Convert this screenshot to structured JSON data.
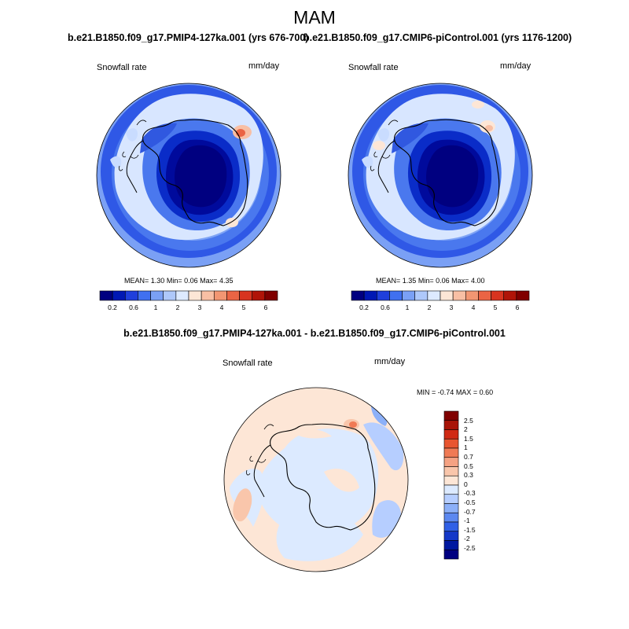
{
  "figure": {
    "title": "MAM",
    "colors": {
      "deep_blue": "#000080",
      "light_blue": "#d6e6ff",
      "light_salmon": "#fde0cc",
      "dark_red": "#800000"
    }
  },
  "panels": [
    {
      "case_title": "b.e21.B1850.f09_g17.PMIP4-127ka.001 (yrs 676-700)",
      "variable": "Snowfall rate",
      "units": "mm/day",
      "stats": {
        "mean_label": "MEAN=",
        "mean": "1.30",
        "min_label": "Min=",
        "min": "0.06",
        "max_label": "Max=",
        "max": "4.35"
      }
    },
    {
      "case_title": "b.e21.B1850.f09_g17.CMIP6-piControl.001 (yrs 1176-1200)",
      "variable": "Snowfall rate",
      "units": "mm/day",
      "stats": {
        "mean_label": "MEAN=",
        "mean": "1.35",
        "min_label": "Min=",
        "min": "0.06",
        "max_label": "Max=",
        "max": "4.00"
      }
    }
  ],
  "diff_panel": {
    "title": "b.e21.B1850.f09_g17.PMIP4-127ka.001 - b.e21.B1850.f09_g17.CMIP6-piControl.001",
    "variable": "Snowfall rate",
    "units": "mm/day",
    "stats": {
      "min_label": "MIN =",
      "min": "-0.74",
      "max_label": "MAX =",
      "max": "0.60"
    }
  },
  "colorbar_main": {
    "ticks": [
      "0.2",
      "0.6",
      "1",
      "2",
      "3",
      "4",
      "5",
      "6"
    ],
    "colors": [
      "#000080",
      "#0018b4",
      "#1f3fdc",
      "#4070f0",
      "#7aa0f5",
      "#aec8fa",
      "#ddeaff",
      "#fde6d6",
      "#f8bfa4",
      "#f29672",
      "#ea6444",
      "#d83420",
      "#b01408",
      "#800000"
    ]
  },
  "colorbar_diff": {
    "ticks": [
      "2.5",
      "2",
      "1.5",
      "1",
      "0.7",
      "0.5",
      "0.3",
      "0",
      "-0.3",
      "-0.5",
      "-0.7",
      "-1",
      "-1.5",
      "-2",
      "-2.5"
    ],
    "colors": [
      "#800000",
      "#a81408",
      "#d02a14",
      "#e85530",
      "#f07a55",
      "#f5a283",
      "#f9c6ab",
      "#fde6d6",
      "#dceaff",
      "#b6ceff",
      "#8cb0f8",
      "#5c88f0",
      "#3060e6",
      "#1438c8",
      "#0018a0",
      "#000080"
    ]
  }
}
